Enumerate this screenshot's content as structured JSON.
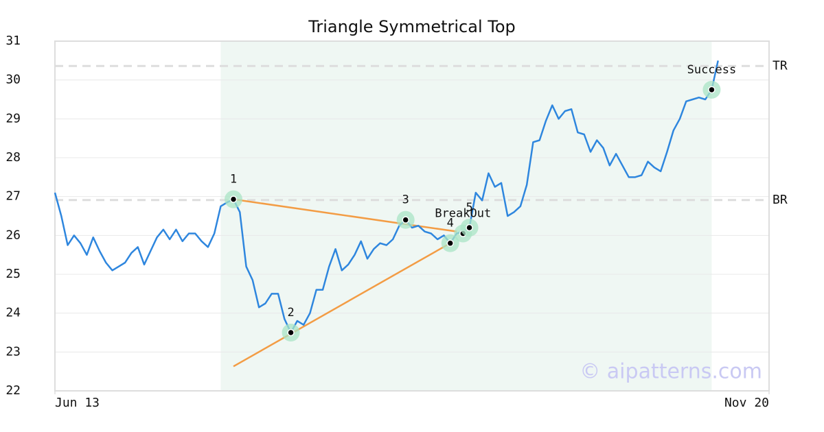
{
  "chart_data": {
    "type": "line",
    "title": "Triangle Symmetrical Top",
    "x": [
      0,
      1,
      2,
      3,
      4,
      5,
      6,
      7,
      8,
      9,
      10,
      11,
      12,
      13,
      14,
      15,
      16,
      17,
      18,
      19,
      20,
      21,
      22,
      23,
      24,
      25,
      26,
      27,
      28,
      29,
      30,
      31,
      32,
      33,
      34,
      35,
      36,
      37,
      38,
      39,
      40,
      41,
      42,
      43,
      44,
      45,
      46,
      47,
      48,
      49,
      50,
      51,
      52,
      53,
      54,
      55,
      56,
      57,
      58,
      59,
      60,
      61,
      62,
      63,
      64,
      65,
      66,
      67,
      68,
      69,
      70,
      71,
      72,
      73,
      74,
      75,
      76,
      77,
      78,
      79,
      80,
      81,
      82,
      83,
      84,
      85,
      86,
      87,
      88,
      89,
      90,
      91,
      92,
      93,
      94,
      95,
      96,
      97,
      98,
      99,
      100,
      101,
      102,
      103,
      104
    ],
    "series": [
      {
        "color": "#2e86de",
        "values": [
          27.1,
          26.5,
          25.75,
          26.0,
          25.8,
          25.5,
          25.95,
          25.6,
          25.3,
          25.1,
          25.2,
          25.3,
          25.55,
          25.7,
          25.25,
          25.6,
          25.95,
          26.15,
          25.9,
          26.15,
          25.85,
          26.05,
          26.05,
          25.85,
          25.7,
          26.05,
          26.75,
          26.85,
          26.93,
          26.6,
          25.2,
          24.85,
          24.15,
          24.25,
          24.5,
          24.5,
          23.85,
          23.5,
          23.8,
          23.7,
          24.0,
          24.6,
          24.6,
          25.2,
          25.65,
          25.1,
          25.25,
          25.5,
          25.85,
          25.4,
          25.65,
          25.8,
          25.75,
          25.9,
          26.25,
          26.4,
          26.2,
          26.25,
          26.1,
          26.05,
          25.9,
          26.0,
          25.8,
          26.05,
          26.1,
          26.2,
          27.1,
          26.9,
          27.6,
          27.25,
          27.35,
          26.5,
          26.6,
          26.75,
          27.3,
          28.4,
          28.45,
          28.95,
          29.35,
          29.0,
          29.2,
          29.25,
          28.65,
          28.6,
          28.15,
          28.45,
          28.25,
          27.8,
          28.1,
          27.8,
          27.5,
          27.5,
          27.55,
          27.9,
          27.75,
          27.65,
          28.15,
          28.7,
          29.0,
          29.45,
          29.5,
          29.55,
          29.5,
          29.75,
          30.5
        ]
      }
    ],
    "xlim": [
      0,
      112
    ],
    "xticks": [
      {
        "value": 0,
        "label": "Jun 13"
      },
      {
        "value": 112,
        "label": "Nov 20"
      }
    ],
    "ylim": [
      22,
      31
    ],
    "yticks": [
      22,
      23,
      24,
      25,
      26,
      27,
      28,
      29,
      30,
      31
    ],
    "grid": true,
    "pattern_region": [
      26,
      103
    ],
    "pattern_points": [
      {
        "label": "1",
        "x": 28,
        "y": 26.93
      },
      {
        "label": "2",
        "x": 37,
        "y": 23.5
      },
      {
        "label": "3",
        "x": 55,
        "y": 26.4
      },
      {
        "label": "4",
        "x": 62,
        "y": 25.8
      },
      {
        "label": "BreakOut",
        "x": 64,
        "y": 26.05
      },
      {
        "label": "5",
        "x": 65,
        "y": 26.2
      },
      {
        "label": "Success",
        "x": 103,
        "y": 29.75
      }
    ],
    "trend_lines": [
      {
        "color": "#f39c44",
        "x": [
          28,
          63
        ],
        "y": [
          26.93,
          26.1
        ]
      },
      {
        "color": "#f39c44",
        "x": [
          28,
          62
        ],
        "y": [
          22.63,
          25.8
        ]
      }
    ],
    "levels": [
      {
        "label": "TR",
        "value": 30.36
      },
      {
        "label": "BR",
        "value": 26.91
      }
    ],
    "watermark": "© aipatterns.com"
  }
}
